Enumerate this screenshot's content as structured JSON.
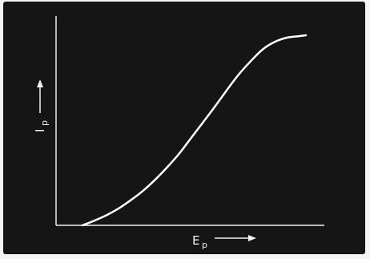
{
  "chart_data": {
    "type": "line",
    "title": "",
    "xlabel_main": "E",
    "xlabel_sub": "p",
    "ylabel_main": "I",
    "ylabel_sub": "p",
    "x_ticks": [],
    "y_ticks": [],
    "grid": false,
    "legend": "none",
    "xlim": [
      0,
      100
    ],
    "ylim": [
      0,
      100
    ],
    "series": [
      {
        "color": "#ffffff",
        "x": [
          0,
          5,
          10,
          15,
          20,
          25,
          30,
          35,
          40,
          45,
          50,
          55,
          60,
          65,
          70,
          75,
          80,
          85,
          90,
          93
        ],
        "y": [
          0,
          2.5,
          5.3,
          8.8,
          13.1,
          17.9,
          23.6,
          30.1,
          37.2,
          45.4,
          53.7,
          62.0,
          70.7,
          79.0,
          86.0,
          92.2,
          96.1,
          98.3,
          99.1,
          99.6
        ]
      }
    ],
    "colors": {
      "background": "#151515",
      "axes": "#f0f0f0",
      "curve": "#ffffff"
    }
  }
}
